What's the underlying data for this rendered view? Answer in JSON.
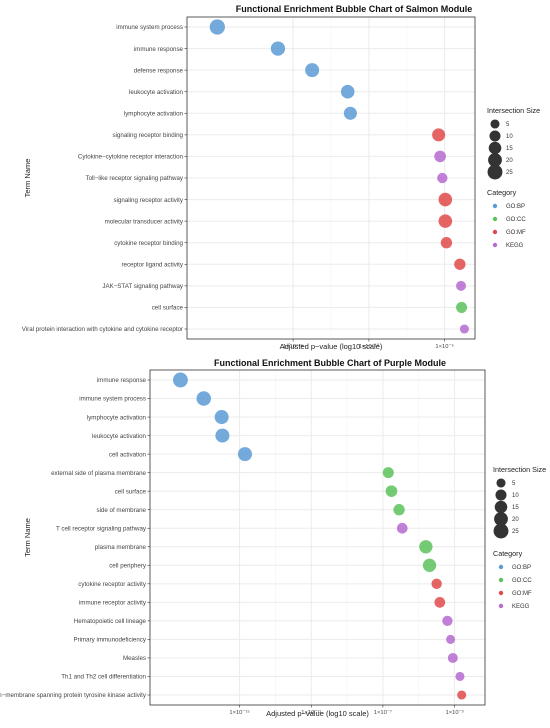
{
  "colors": {
    "GO:BP": "#5b9bd5",
    "GO:CC": "#5cc25c",
    "GO:MF": "#e04a4a",
    "KEGG": "#b56ad0",
    "panel_border": "#333333",
    "grid": "#ebebeb"
  },
  "chart_data": [
    {
      "type": "scatter",
      "title": "Functional Enrichment Bubble Chart of Salmon Module",
      "xlabel": "Adjusted p−value (log10 scale)",
      "ylabel": "Term Name",
      "x_scale": "log10",
      "xlim": [
        1e-22,
        0.001
      ],
      "x_ticks": [
        {
          "value": 1e-15,
          "label": "1×10⁻¹⁵"
        },
        {
          "value": 1e-10,
          "label": "1×10⁻¹⁰"
        },
        {
          "value": 1e-05,
          "label": "1×10⁻⁵"
        }
      ],
      "legend_size_title": "Intersection Size",
      "legend_size_values": [
        5,
        10,
        15,
        20,
        25
      ],
      "legend_category_title": "Category",
      "legend_categories": [
        "GO:BP",
        "GO:CC",
        "GO:MF",
        "KEGG"
      ],
      "legend_position": "right",
      "points": [
        {
          "term": "immune system process",
          "x": 1e-20,
          "size": 27,
          "category": "GO:BP"
        },
        {
          "term": "immune response",
          "x": 1e-16,
          "size": 22,
          "category": "GO:BP"
        },
        {
          "term": "defense response",
          "x": 1.8e-14,
          "size": 21,
          "category": "GO:BP"
        },
        {
          "term": "leukocyte activation",
          "x": 4e-12,
          "size": 19,
          "category": "GO:BP"
        },
        {
          "term": "lymphocyte activation",
          "x": 6e-12,
          "size": 17,
          "category": "GO:BP"
        },
        {
          "term": "signaling receptor binding",
          "x": 4e-06,
          "size": 17,
          "category": "GO:MF"
        },
        {
          "term": "Cytokine−cytokine receptor interaction",
          "x": 5e-06,
          "size": 12,
          "category": "KEGG"
        },
        {
          "term": "Toll−like receptor signaling pathway",
          "x": 7e-06,
          "size": 8,
          "category": "KEGG"
        },
        {
          "term": "signaling receptor activity",
          "x": 1.1e-05,
          "size": 19,
          "category": "GO:MF"
        },
        {
          "term": "molecular transducer activity",
          "x": 1.1e-05,
          "size": 19,
          "category": "GO:MF"
        },
        {
          "term": "cytokine receptor binding",
          "x": 1.3e-05,
          "size": 11,
          "category": "GO:MF"
        },
        {
          "term": "receptor ligand activity",
          "x": 0.0001,
          "size": 11,
          "category": "GO:MF"
        },
        {
          "term": "JAK−STAT signaling pathway",
          "x": 0.00012,
          "size": 7,
          "category": "KEGG"
        },
        {
          "term": "cell surface",
          "x": 0.00013,
          "size": 10,
          "category": "GO:CC"
        },
        {
          "term": "Viral protein interaction with cytokine and cytokine receptor",
          "x": 0.0002,
          "size": 5,
          "category": "KEGG"
        }
      ]
    },
    {
      "type": "scatter",
      "title": "Functional Enrichment Bubble Chart of Purple Module",
      "xlabel": "Adjusted p−value (log10 scale)",
      "ylabel": "Term Name",
      "x_scale": "log10",
      "xlim": [
        1e-20,
        0.05
      ],
      "x_ticks": [
        {
          "value": 1e-15,
          "label": "1×10⁻¹⁵"
        },
        {
          "value": 1e-11,
          "label": "1×10⁻¹¹"
        },
        {
          "value": 1e-07,
          "label": "1×10⁻⁷"
        },
        {
          "value": 0.001,
          "label": "1×10⁻³"
        }
      ],
      "legend_size_title": "Intersection Size",
      "legend_size_values": [
        5,
        10,
        15,
        20,
        25
      ],
      "legend_category_title": "Category",
      "legend_categories": [
        "GO:BP",
        "GO:CC",
        "GO:MF",
        "KEGG"
      ],
      "legend_position": "right",
      "points": [
        {
          "term": "immune response",
          "x": 5e-19,
          "size": 25,
          "category": "GO:BP"
        },
        {
          "term": "immune system process",
          "x": 1e-17,
          "size": 23,
          "category": "GO:BP"
        },
        {
          "term": "lymphocyte activation",
          "x": 1e-16,
          "size": 21,
          "category": "GO:BP"
        },
        {
          "term": "leukocyte activation",
          "x": 1.1e-16,
          "size": 21,
          "category": "GO:BP"
        },
        {
          "term": "cell activation",
          "x": 2e-15,
          "size": 21,
          "category": "GO:BP"
        },
        {
          "term": "external side of plasma membrane",
          "x": 2e-07,
          "size": 10,
          "category": "GO:CC"
        },
        {
          "term": "cell surface",
          "x": 3e-07,
          "size": 12,
          "category": "GO:CC"
        },
        {
          "term": "side of membrane",
          "x": 8e-07,
          "size": 11,
          "category": "GO:CC"
        },
        {
          "term": "T cell receptor signaling pathway",
          "x": 1.2e-06,
          "size": 9,
          "category": "KEGG"
        },
        {
          "term": "plasma membrane",
          "x": 2.5e-05,
          "size": 18,
          "category": "GO:CC"
        },
        {
          "term": "cell periphery",
          "x": 4e-05,
          "size": 18,
          "category": "GO:CC"
        },
        {
          "term": "cytokine receptor activity",
          "x": 0.0001,
          "size": 8,
          "category": "GO:MF"
        },
        {
          "term": "immune receptor activity",
          "x": 0.00015,
          "size": 9,
          "category": "GO:MF"
        },
        {
          "term": "Hematopoietic cell lineage",
          "x": 0.0004,
          "size": 8,
          "category": "KEGG"
        },
        {
          "term": "Primary immunodeficiency",
          "x": 0.0006,
          "size": 5,
          "category": "KEGG"
        },
        {
          "term": "Measles",
          "x": 0.0008,
          "size": 7,
          "category": "KEGG"
        },
        {
          "term": "Th1 and Th2 cell differentiation",
          "x": 0.002,
          "size": 5,
          "category": "KEGG"
        },
        {
          "term": "non−membrane spanning protein tyrosine kinase activity",
          "x": 0.0025,
          "size": 5,
          "category": "GO:MF"
        }
      ]
    }
  ]
}
